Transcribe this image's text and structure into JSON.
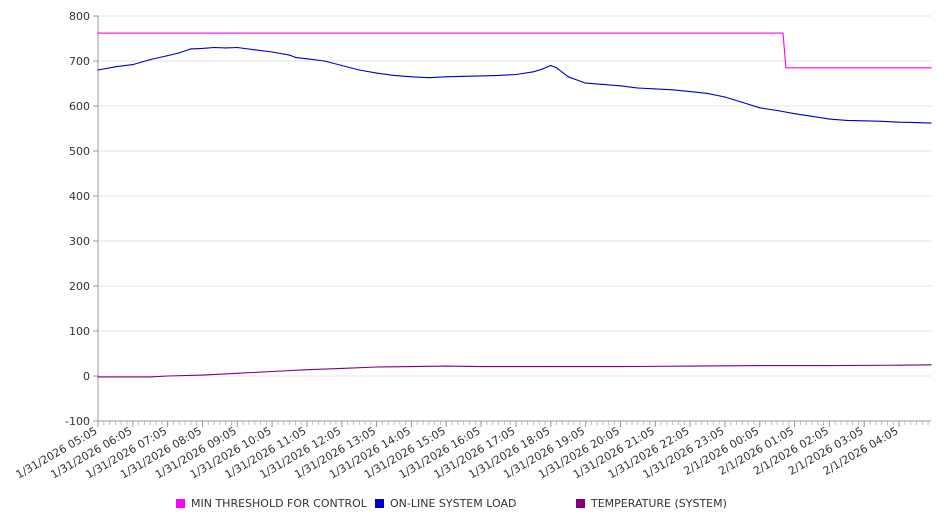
{
  "chart_data": {
    "type": "line",
    "title": "",
    "xlabel": "",
    "ylabel": "",
    "ylim": [
      -100,
      800
    ],
    "yticks": [
      -100,
      0,
      100,
      200,
      300,
      400,
      500,
      600,
      700,
      800
    ],
    "grid": "horizontal",
    "legend_position": "bottom",
    "x_labels": [
      "1/31/2026 05:05",
      "1/31/2026 06:05",
      "1/31/2026 07:05",
      "1/31/2026 08:05",
      "1/31/2026 09:05",
      "1/31/2026 10:05",
      "1/31/2026 11:05",
      "1/31/2026 12:05",
      "1/31/2026 13:05",
      "1/31/2026 14:05",
      "1/31/2026 15:05",
      "1/31/2026 16:05",
      "1/31/2026 17:05",
      "1/31/2026 18:05",
      "1/31/2026 19:05",
      "1/31/2026 20:05",
      "1/31/2026 21:05",
      "1/31/2026 22:05",
      "1/31/2026 23:05",
      "2/1/2026 00:05",
      "2/1/2026 01:05",
      "2/1/2026 02:05",
      "2/1/2026 03:05",
      "2/1/2026 04:05"
    ],
    "series": [
      {
        "name": "MIN THRESHOLD FOR CONTROL",
        "color": "#ff00ff",
        "x": [
          "1/31/2026 05:05",
          "2/1/2026 00:45",
          "2/1/2026 00:50",
          "2/1/2026 05:00"
        ],
        "values": [
          762,
          762,
          685,
          685
        ]
      },
      {
        "name": "ON-LINE SYSTEM LOAD",
        "color": "#0000cc",
        "x": [
          "1/31/2026 05:05",
          "1/31/2026 05:35",
          "1/31/2026 06:05",
          "1/31/2026 06:35",
          "1/31/2026 07:05",
          "1/31/2026 07:25",
          "1/31/2026 07:45",
          "1/31/2026 08:05",
          "1/31/2026 08:25",
          "1/31/2026 08:45",
          "1/31/2026 09:05",
          "1/31/2026 09:35",
          "1/31/2026 10:05",
          "1/31/2026 10:35",
          "1/31/2026 10:45",
          "1/31/2026 11:05",
          "1/31/2026 11:35",
          "1/31/2026 12:05",
          "1/31/2026 12:35",
          "1/31/2026 13:05",
          "1/31/2026 13:35",
          "1/31/2026 14:05",
          "1/31/2026 14:35",
          "1/31/2026 15:05",
          "1/31/2026 15:35",
          "1/31/2026 16:05",
          "1/31/2026 16:35",
          "1/31/2026 17:05",
          "1/31/2026 17:35",
          "1/31/2026 17:50",
          "1/31/2026 18:05",
          "1/31/2026 18:15",
          "1/31/2026 18:35",
          "1/31/2026 19:05",
          "1/31/2026 19:35",
          "1/31/2026 20:05",
          "1/31/2026 20:35",
          "1/31/2026 21:05",
          "1/31/2026 21:35",
          "1/31/2026 22:05",
          "1/31/2026 22:35",
          "1/31/2026 23:05",
          "1/31/2026 23:35",
          "2/1/2026 00:05",
          "2/1/2026 00:35",
          "2/1/2026 01:05",
          "2/1/2026 01:35",
          "2/1/2026 02:05",
          "2/1/2026 02:35",
          "2/1/2026 03:05",
          "2/1/2026 03:35",
          "2/1/2026 04:05",
          "2/1/2026 04:35",
          "2/1/2026 05:00"
        ],
        "values": [
          680,
          687,
          692,
          703,
          712,
          718,
          727,
          728,
          730,
          729,
          730,
          725,
          720,
          713,
          708,
          705,
          700,
          690,
          680,
          673,
          668,
          665,
          663,
          665,
          666,
          667,
          668,
          670,
          676,
          682,
          690,
          685,
          665,
          651,
          648,
          645,
          640,
          638,
          636,
          632,
          628,
          620,
          608,
          596,
          590,
          583,
          577,
          571,
          568,
          567,
          566,
          564,
          563,
          562
        ]
      },
      {
        "name": "TEMPERATURE (SYSTEM)",
        "color": "#800080",
        "x": [
          "1/31/2026 05:05",
          "1/31/2026 06:35",
          "1/31/2026 07:05",
          "1/31/2026 08:05",
          "1/31/2026 09:05",
          "1/31/2026 10:05",
          "1/31/2026 11:05",
          "1/31/2026 12:05",
          "1/31/2026 13:05",
          "1/31/2026 14:05",
          "1/31/2026 15:05",
          "1/31/2026 16:05",
          "1/31/2026 18:05",
          "1/31/2026 20:05",
          "1/31/2026 22:05",
          "2/1/2026 00:05",
          "2/1/2026 02:05",
          "2/1/2026 04:05",
          "2/1/2026 05:00"
        ],
        "values": [
          -2,
          -2,
          0,
          2,
          6,
          10,
          14,
          17,
          20,
          21,
          22,
          21,
          21,
          21,
          22,
          23,
          23,
          24,
          25
        ]
      }
    ]
  },
  "legend": [
    {
      "label": "MIN THRESHOLD FOR CONTROL",
      "color": "#ff00ff"
    },
    {
      "label": "ON-LINE SYSTEM LOAD",
      "color": "#0000cc"
    },
    {
      "label": "TEMPERATURE (SYSTEM)",
      "color": "#800080"
    }
  ]
}
